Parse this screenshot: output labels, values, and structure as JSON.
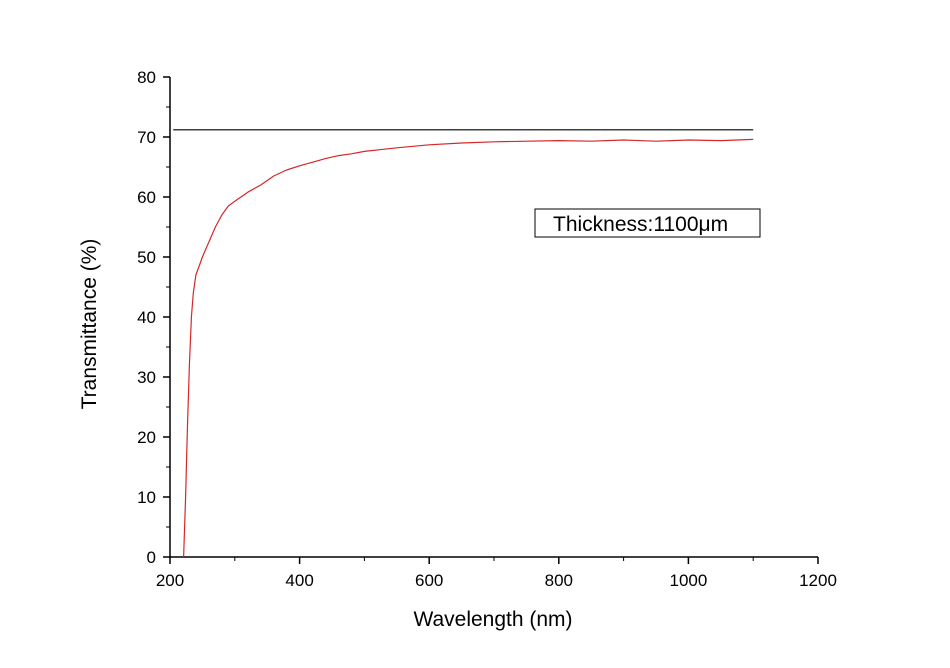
{
  "chart_data": {
    "type": "line",
    "title": "",
    "xlabel": "Wavelength (nm)",
    "ylabel": "Transmittance (%)",
    "xlim": [
      200,
      1200
    ],
    "ylim": [
      0,
      80
    ],
    "xticks": [
      200,
      400,
      600,
      800,
      1000,
      1200
    ],
    "yticks": [
      0,
      10,
      20,
      30,
      40,
      50,
      60,
      70,
      80
    ],
    "grid": false,
    "annotation": "Thickness:1100μm",
    "series": [
      {
        "color": "#d62728",
        "x": [
          221,
          224,
          227,
          230,
          233,
          236,
          240,
          245,
          250,
          260,
          270,
          280,
          290,
          300,
          320,
          340,
          360,
          380,
          400,
          420,
          440,
          460,
          480,
          500,
          550,
          600,
          650,
          700,
          750,
          800,
          850,
          900,
          950,
          1000,
          1050,
          1100
        ],
        "y": [
          0,
          10,
          22,
          32,
          40,
          44,
          47,
          48.5,
          50,
          52.5,
          55,
          57,
          58.5,
          59.3,
          60.8,
          62,
          63.5,
          64.5,
          65.2,
          65.8,
          66.4,
          66.9,
          67.2,
          67.6,
          68.2,
          68.7,
          69.0,
          69.2,
          69.3,
          69.4,
          69.3,
          69.5,
          69.3,
          69.5,
          69.4,
          69.6
        ]
      },
      {
        "color": "#000000",
        "x": [
          205,
          1100
        ],
        "y": [
          71.2,
          71.2
        ]
      }
    ]
  }
}
